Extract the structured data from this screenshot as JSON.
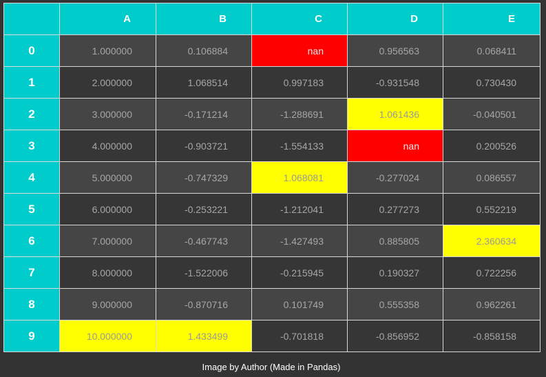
{
  "table": {
    "columns": [
      "A",
      "B",
      "C",
      "D",
      "E"
    ],
    "rows": [
      {
        "index": "0",
        "cells": [
          {
            "value": "1.000000",
            "status": "normal"
          },
          {
            "value": "0.106884",
            "status": "normal"
          },
          {
            "value": "nan",
            "status": "nan"
          },
          {
            "value": "0.956563",
            "status": "normal"
          },
          {
            "value": "0.068411",
            "status": "normal"
          }
        ]
      },
      {
        "index": "1",
        "cells": [
          {
            "value": "2.000000",
            "status": "normal"
          },
          {
            "value": "1.068514",
            "status": "normal"
          },
          {
            "value": "0.997183",
            "status": "normal"
          },
          {
            "value": "-0.931548",
            "status": "normal"
          },
          {
            "value": "0.730430",
            "status": "normal"
          }
        ]
      },
      {
        "index": "2",
        "cells": [
          {
            "value": "3.000000",
            "status": "normal"
          },
          {
            "value": "-0.171214",
            "status": "normal"
          },
          {
            "value": "-1.288691",
            "status": "normal"
          },
          {
            "value": "1.061436",
            "status": "max"
          },
          {
            "value": "-0.040501",
            "status": "normal"
          }
        ]
      },
      {
        "index": "3",
        "cells": [
          {
            "value": "4.000000",
            "status": "normal"
          },
          {
            "value": "-0.903721",
            "status": "normal"
          },
          {
            "value": "-1.554133",
            "status": "normal"
          },
          {
            "value": "nan",
            "status": "nan"
          },
          {
            "value": "0.200526",
            "status": "normal"
          }
        ]
      },
      {
        "index": "4",
        "cells": [
          {
            "value": "5.000000",
            "status": "normal"
          },
          {
            "value": "-0.747329",
            "status": "normal"
          },
          {
            "value": "1.068081",
            "status": "max"
          },
          {
            "value": "-0.277024",
            "status": "normal"
          },
          {
            "value": "0.086557",
            "status": "normal"
          }
        ]
      },
      {
        "index": "5",
        "cells": [
          {
            "value": "6.000000",
            "status": "normal"
          },
          {
            "value": "-0.253221",
            "status": "normal"
          },
          {
            "value": "-1.212041",
            "status": "normal"
          },
          {
            "value": "0.277273",
            "status": "normal"
          },
          {
            "value": "0.552219",
            "status": "normal"
          }
        ]
      },
      {
        "index": "6",
        "cells": [
          {
            "value": "7.000000",
            "status": "normal"
          },
          {
            "value": "-0.467743",
            "status": "normal"
          },
          {
            "value": "-1.427493",
            "status": "normal"
          },
          {
            "value": "0.885805",
            "status": "normal"
          },
          {
            "value": "2.360634",
            "status": "max"
          }
        ]
      },
      {
        "index": "7",
        "cells": [
          {
            "value": "8.000000",
            "status": "normal"
          },
          {
            "value": "-1.522006",
            "status": "normal"
          },
          {
            "value": "-0.215945",
            "status": "normal"
          },
          {
            "value": "0.190327",
            "status": "normal"
          },
          {
            "value": "0.722256",
            "status": "normal"
          }
        ]
      },
      {
        "index": "8",
        "cells": [
          {
            "value": "9.000000",
            "status": "normal"
          },
          {
            "value": "-0.870716",
            "status": "normal"
          },
          {
            "value": "0.101749",
            "status": "normal"
          },
          {
            "value": "0.555358",
            "status": "normal"
          },
          {
            "value": "0.962261",
            "status": "normal"
          }
        ]
      },
      {
        "index": "9",
        "cells": [
          {
            "value": "10.000000",
            "status": "max"
          },
          {
            "value": "1.433499",
            "status": "max"
          },
          {
            "value": "-0.701818",
            "status": "normal"
          },
          {
            "value": "-0.856952",
            "status": "normal"
          },
          {
            "value": "-0.858158",
            "status": "normal"
          }
        ]
      }
    ]
  },
  "caption": "Image by Author (Made in Pandas)",
  "colors": {
    "header_bg": "#00cccc",
    "row_even_bg": "#454545",
    "row_odd_bg": "#363636",
    "nan_highlight": "#ff0000",
    "max_highlight": "#ffff00",
    "page_bg": "#333333"
  }
}
